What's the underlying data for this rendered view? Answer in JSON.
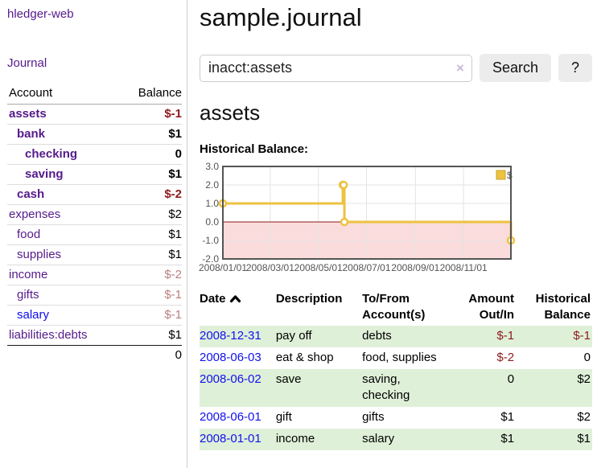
{
  "app": {
    "title": "hledger-web"
  },
  "nav": {
    "journal": "Journal"
  },
  "sidebar": {
    "header": {
      "account": "Account",
      "balance": "Balance"
    },
    "accounts": [
      {
        "name": "assets",
        "depth": 0,
        "bold": true,
        "balance": "$-1"
      },
      {
        "name": "bank",
        "depth": 1,
        "bold": true,
        "balance": "$1"
      },
      {
        "name": "checking",
        "depth": 2,
        "bold": true,
        "balance": "0"
      },
      {
        "name": "saving",
        "depth": 2,
        "bold": true,
        "balance": "$1"
      },
      {
        "name": "cash",
        "depth": 1,
        "bold": true,
        "balance": "$-2"
      },
      {
        "name": "expenses",
        "depth": 0,
        "bold": false,
        "balance": "$2"
      },
      {
        "name": "food",
        "depth": 1,
        "bold": false,
        "balance": "$1"
      },
      {
        "name": "supplies",
        "depth": 1,
        "bold": false,
        "balance": "$1"
      },
      {
        "name": "income",
        "depth": 0,
        "bold": false,
        "balance": "$-2"
      },
      {
        "name": "gifts",
        "depth": 1,
        "bold": false,
        "balance": "$-1"
      },
      {
        "name": "salary",
        "depth": 1,
        "bold": false,
        "balance": "$-1",
        "blue": true
      },
      {
        "name": "liabilities:debts",
        "depth": 0,
        "bold": false,
        "balance": "$1"
      }
    ],
    "total": "0"
  },
  "header": {
    "title": "sample.journal"
  },
  "search": {
    "value": "inacct:assets",
    "clear_icon": "×",
    "button": "Search",
    "help_button": "?"
  },
  "main": {
    "account_title": "assets",
    "chart_label": "Historical Balance:"
  },
  "chart_data": {
    "type": "line",
    "title": "Historical Balance",
    "step": true,
    "series": [
      {
        "name": "$",
        "color": "#edc240",
        "x": [
          "2008-01-01",
          "2008-06-01",
          "2008-06-02",
          "2008-06-03",
          "2008-12-31"
        ],
        "values": [
          1,
          2,
          2,
          0,
          -1
        ]
      }
    ],
    "x_range": [
      "2008-01-01",
      "2008-12-31"
    ],
    "ylim": [
      -2,
      3
    ],
    "y_ticks": [
      "3.0",
      "2.0",
      "1.0",
      "0.0",
      "-1.0",
      "-2.0"
    ],
    "x_ticks": [
      "2008/01/01",
      "2008/03/01",
      "2008/05/01",
      "2008/07/01",
      "2008/09/01",
      "2008/11/01"
    ],
    "legend": {
      "label": "$",
      "position": "top-right"
    },
    "grid": true,
    "colors": {
      "negative_region": "#fbdcdc",
      "zero_line": "#8b1a1a",
      "grid_line": "#e3e3e3",
      "border": "#545454",
      "tick_text": "#545454",
      "legend_swatch_border": "#c9a52f"
    }
  },
  "register": {
    "columns": [
      "Date",
      "Description",
      "To/From Account(s)",
      "Amount Out/In",
      "Historical Balance"
    ],
    "sort_icon": "chevron-up",
    "rows": [
      {
        "date": "2008-12-31",
        "description": "pay off",
        "accounts": "debts",
        "amount": "$-1",
        "balance": "$-1"
      },
      {
        "date": "2008-06-03",
        "description": "eat & shop",
        "accounts": "food, supplies",
        "amount": "$-2",
        "balance": "0"
      },
      {
        "date": "2008-06-02",
        "description": "save",
        "accounts": "saving, checking",
        "amount": "0",
        "balance": "$2"
      },
      {
        "date": "2008-06-01",
        "description": "gift",
        "accounts": "gifts",
        "amount": "$1",
        "balance": "$2"
      },
      {
        "date": "2008-01-01",
        "description": "income",
        "accounts": "salary",
        "amount": "$1",
        "balance": "$1"
      }
    ]
  }
}
